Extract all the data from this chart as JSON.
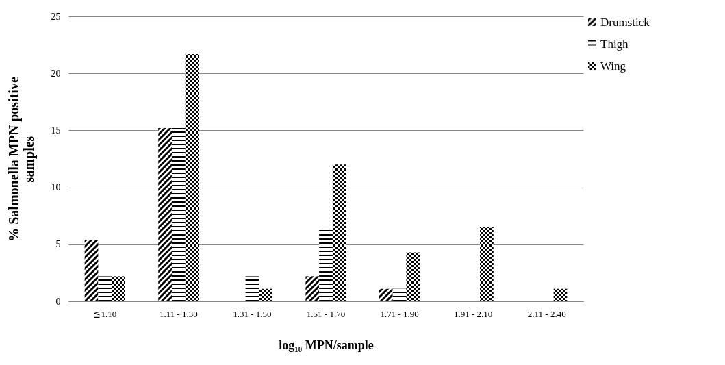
{
  "chart_data": {
    "type": "bar",
    "xlabel": "log₁₀ MPN/sample",
    "ylabel": "% Salmonella MPN positive samples",
    "categories": [
      "≦1.10",
      "1.11 - 1.30",
      "1.31 - 1.50",
      "1.51 - 1.70",
      "1.71 - 1.90",
      "1.91 - 2.10",
      "2.11 - 2.40"
    ],
    "series": [
      {
        "name": "Drumstick",
        "color": "#000000",
        "values": [
          5.4,
          15.2,
          0,
          2.2,
          1.1,
          0,
          0
        ]
      },
      {
        "name": "Thigh",
        "color": "#000000",
        "values": [
          2.2,
          15.2,
          2.2,
          6.5,
          1.1,
          0,
          0
        ]
      },
      {
        "name": "Wing",
        "color": "#000000",
        "values": [
          2.2,
          21.7,
          1.1,
          12.0,
          4.3,
          6.5,
          1.1
        ]
      }
    ],
    "ylim": [
      0,
      25
    ],
    "yticks": [
      0,
      5,
      10,
      15,
      20,
      25
    ],
    "grid": "y",
    "legend": "right"
  }
}
